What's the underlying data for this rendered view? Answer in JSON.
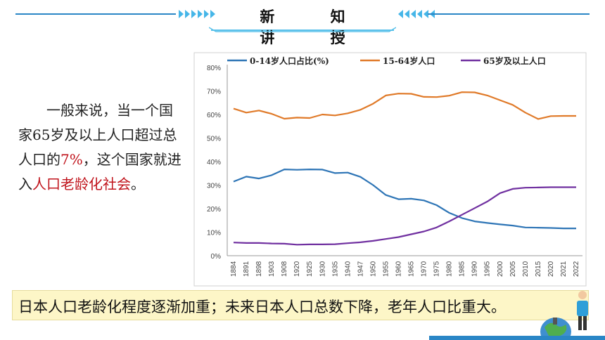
{
  "header": {
    "title": "新 知 讲 授"
  },
  "paragraph": {
    "part1": "一般来说，当一个国家65岁及以上人口超过总人口的",
    "highlight1": "7%",
    "part2": "，这个国家就进入",
    "highlight2": "人口老龄化社会",
    "part3": "。"
  },
  "banner": {
    "text": "日本人口老龄化程度逐渐加重；未来日本人口总数下降，老年人口比重大。"
  },
  "colors": {
    "accent": "#2a86c6",
    "highlight_red": "#c0131b",
    "banner_bg": "#fdf6c7",
    "series_0_14": "#2e75b6",
    "series_15_64": "#e07a29",
    "series_65": "#7030a0"
  },
  "chart_data": {
    "type": "line",
    "categories": [
      "1884",
      "1891",
      "1898",
      "1903",
      "1908",
      "1920",
      "1925",
      "1930",
      "1935",
      "1940",
      "1947",
      "1950",
      "1955",
      "1960",
      "1965",
      "1970",
      "1975",
      "1980",
      "1985",
      "1990",
      "1995",
      "2000",
      "2005",
      "2010",
      "2015",
      "2020",
      "2021",
      "2022"
    ],
    "y_ticks": [
      "0%",
      "10%",
      "20%",
      "30%",
      "40%",
      "50%",
      "60%",
      "70%",
      "80%"
    ],
    "ylim": [
      0,
      80
    ],
    "legend_position": "top",
    "series": [
      {
        "name": "0-14岁人口占比(%)",
        "values": [
          31.5,
          33.6,
          32.8,
          34.2,
          36.7,
          36.5,
          36.7,
          36.6,
          35.1,
          35.3,
          33.5,
          30.0,
          25.8,
          24.0,
          24.2,
          23.5,
          21.5,
          18.2,
          16.0,
          14.6,
          13.9,
          13.3,
          12.8,
          12.0,
          11.9,
          11.8,
          11.6,
          11.6
        ]
      },
      {
        "name": "15-64岁人口",
        "values": [
          62.5,
          60.8,
          61.7,
          60.3,
          58.2,
          58.7,
          58.5,
          60.0,
          59.6,
          60.5,
          62.0,
          64.6,
          68.1,
          68.9,
          68.8,
          67.5,
          67.4,
          68.0,
          69.5,
          69.4,
          68.1,
          66.1,
          64.1,
          60.8,
          58.1,
          59.3,
          59.4,
          59.4
        ]
      },
      {
        "name": "65岁及以上人口",
        "values": [
          5.6,
          5.4,
          5.4,
          5.2,
          5.1,
          4.7,
          4.8,
          4.8,
          4.9,
          5.3,
          5.7,
          6.3,
          7.1,
          7.9,
          9.1,
          10.3,
          12.0,
          14.6,
          17.4,
          20.2,
          23.0,
          26.6,
          28.4,
          28.9,
          29.0,
          29.1,
          29.1,
          29.1
        ]
      }
    ]
  }
}
